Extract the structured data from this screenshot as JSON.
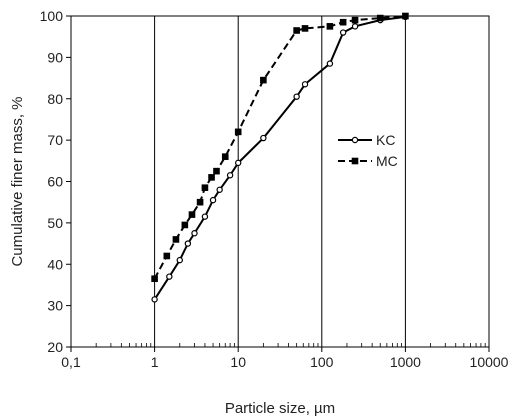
{
  "chart_data": {
    "type": "line",
    "xscale": "log",
    "xlabel": "Particle size, µm",
    "ylabel": "Cumulative finer mass, %",
    "xlim": [
      0.1,
      10000
    ],
    "ylim": [
      20,
      100
    ],
    "x_ticks": [
      {
        "value": 0.1,
        "label": "0,1"
      },
      {
        "value": 1,
        "label": "1"
      },
      {
        "value": 10,
        "label": "10"
      },
      {
        "value": 100,
        "label": "100"
      },
      {
        "value": 1000,
        "label": "1000"
      },
      {
        "value": 10000,
        "label": "10000"
      }
    ],
    "y_ticks": [
      20,
      30,
      40,
      50,
      60,
      70,
      80,
      90,
      100
    ],
    "grid": {
      "x_major": true,
      "y_major": false
    },
    "legend": {
      "position": "center-right"
    },
    "series": [
      {
        "name": "KC",
        "line_style": "solid",
        "marker": "open-circle",
        "color": "#000000",
        "points": [
          {
            "x": 1,
            "y": 31.5
          },
          {
            "x": 1.5,
            "y": 37
          },
          {
            "x": 2,
            "y": 41
          },
          {
            "x": 2.5,
            "y": 45
          },
          {
            "x": 3,
            "y": 47.5
          },
          {
            "x": 4,
            "y": 51.5
          },
          {
            "x": 5,
            "y": 55.5
          },
          {
            "x": 6,
            "y": 58
          },
          {
            "x": 8,
            "y": 61.5
          },
          {
            "x": 10,
            "y": 64.5
          },
          {
            "x": 20,
            "y": 70.5
          },
          {
            "x": 50,
            "y": 80.5
          },
          {
            "x": 63,
            "y": 83.5
          },
          {
            "x": 125,
            "y": 88.5
          },
          {
            "x": 180,
            "y": 96
          },
          {
            "x": 250,
            "y": 97.5
          },
          {
            "x": 500,
            "y": 99
          },
          {
            "x": 1000,
            "y": 99.8
          }
        ]
      },
      {
        "name": "MC",
        "line_style": "dashed",
        "marker": "filled-square",
        "color": "#000000",
        "points": [
          {
            "x": 1,
            "y": 36.5
          },
          {
            "x": 1.4,
            "y": 42
          },
          {
            "x": 1.8,
            "y": 46
          },
          {
            "x": 2.3,
            "y": 49.5
          },
          {
            "x": 2.8,
            "y": 52
          },
          {
            "x": 3.5,
            "y": 55
          },
          {
            "x": 4,
            "y": 58.5
          },
          {
            "x": 4.8,
            "y": 61
          },
          {
            "x": 5.5,
            "y": 62.5
          },
          {
            "x": 7,
            "y": 66
          },
          {
            "x": 10,
            "y": 72
          },
          {
            "x": 20,
            "y": 84.5
          },
          {
            "x": 50,
            "y": 96.5
          },
          {
            "x": 63,
            "y": 97
          },
          {
            "x": 125,
            "y": 97.5
          },
          {
            "x": 180,
            "y": 98.5
          },
          {
            "x": 250,
            "y": 99
          },
          {
            "x": 500,
            "y": 99.5
          },
          {
            "x": 1000,
            "y": 100
          }
        ]
      }
    ]
  }
}
